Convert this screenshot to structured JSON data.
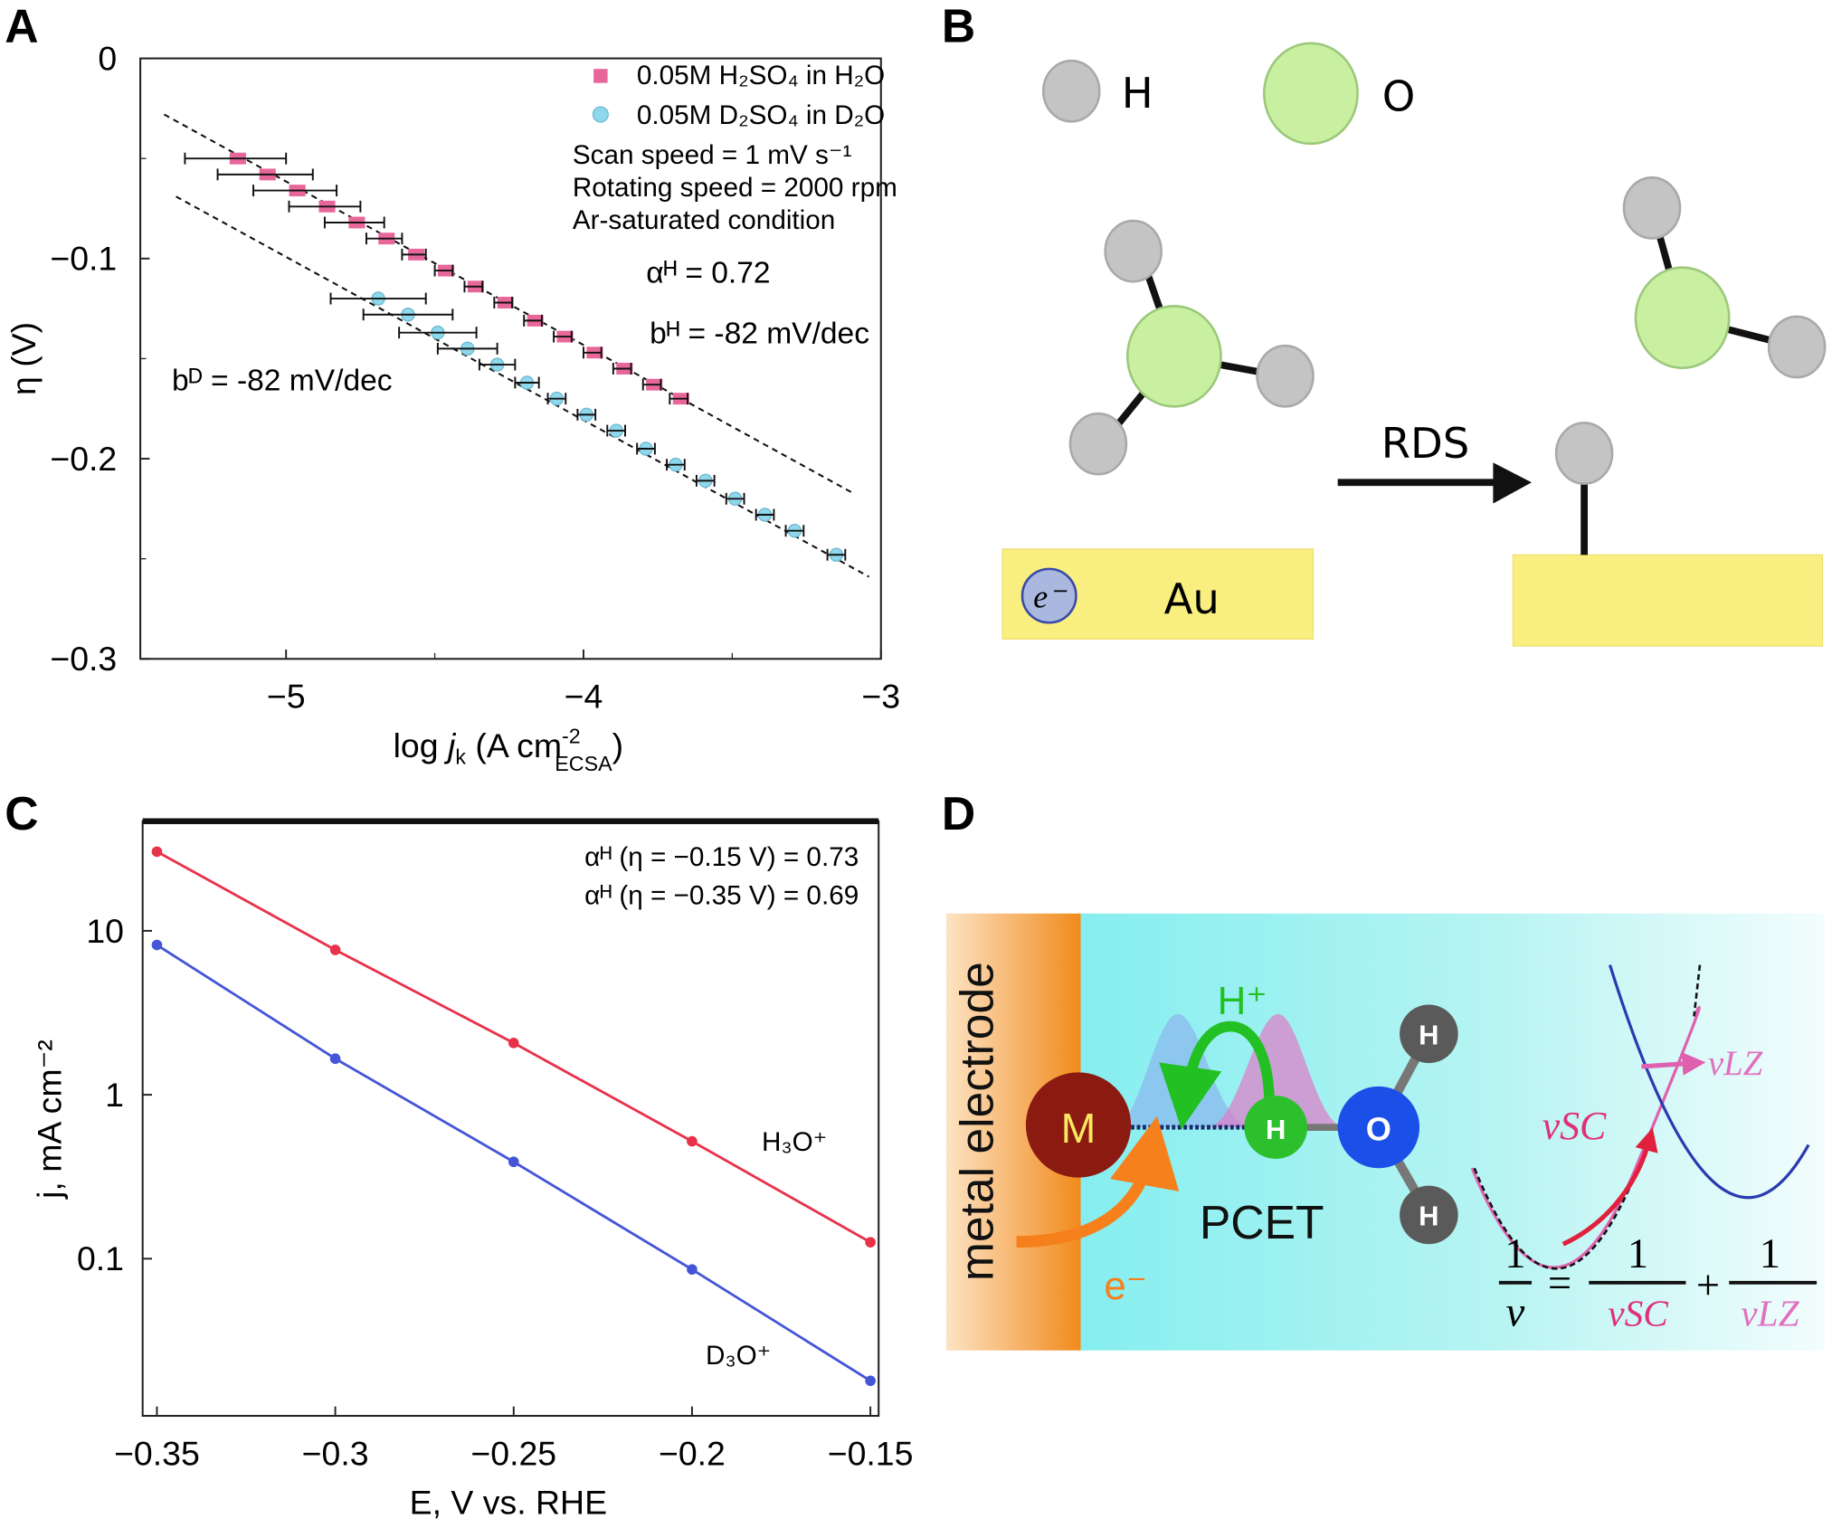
{
  "panels": {
    "a": "A",
    "b": "B",
    "c": "C",
    "d": "D"
  },
  "chart_data": [
    {
      "type": "scatter",
      "panel": "A",
      "xlabel": "log jₖ (A cm⁻²ECSA)",
      "xlabel_parts": {
        "pre": "log ",
        "j": "j",
        "k": "k",
        "mid": " (A cm",
        "sup": "-2",
        "sub": "ECSA",
        "post": ")"
      },
      "ylabel": "η (V)",
      "xlim": [
        -5.49,
        -3
      ],
      "ylim": [
        -0.3,
        0
      ],
      "xticks": [
        -5,
        -4,
        -3
      ],
      "xtick_labels": [
        "−5",
        "−4",
        "−3"
      ],
      "yticks": [
        0,
        -0.1,
        -0.2,
        -0.3
      ],
      "ytick_labels": [
        "0",
        "−0.1",
        "−0.2",
        "−0.3"
      ],
      "grid": false,
      "legend_position": "top-right",
      "series": [
        {
          "name": "0.05M H₂SO₄ in H₂O",
          "color": "#e8679a",
          "marker": "square",
          "x": [
            -5.17,
            -5.07,
            -4.97,
            -4.87,
            -4.77,
            -4.67,
            -4.57,
            -4.47,
            -4.37,
            -4.27,
            -4.17,
            -4.07,
            -3.97,
            -3.87,
            -3.77,
            -3.68
          ],
          "y": [
            -0.05,
            -0.058,
            -0.066,
            -0.074,
            -0.082,
            -0.09,
            -0.098,
            -0.106,
            -0.114,
            -0.122,
            -0.131,
            -0.139,
            -0.147,
            -0.155,
            -0.163,
            -0.17
          ],
          "xerr": [
            0.17,
            0.16,
            0.14,
            0.12,
            0.1,
            0.06,
            0.04,
            0.03,
            0.03,
            0.03,
            0.03,
            0.03,
            0.03,
            0.03,
            0.03,
            0.03
          ]
        },
        {
          "name": "0.05M D₂SO₄ in D₂O",
          "color": "#8fd8ec",
          "marker": "circle",
          "x": [
            -4.69,
            -4.59,
            -4.49,
            -4.39,
            -4.29,
            -4.19,
            -4.09,
            -3.99,
            -3.89,
            -3.79,
            -3.69,
            -3.59,
            -3.49,
            -3.39,
            -3.29,
            -3.15
          ],
          "y": [
            -0.12,
            -0.128,
            -0.137,
            -0.145,
            -0.153,
            -0.162,
            -0.17,
            -0.178,
            -0.186,
            -0.195,
            -0.203,
            -0.211,
            -0.22,
            -0.228,
            -0.236,
            -0.248
          ],
          "xerr": [
            0.16,
            0.15,
            0.13,
            0.1,
            0.06,
            0.04,
            0.03,
            0.03,
            0.03,
            0.03,
            0.03,
            0.03,
            0.03,
            0.03,
            0.03,
            0.03
          ]
        }
      ],
      "fit_lines": [
        {
          "x": [
            -5.41,
            -3.09
          ],
          "y": [
            -0.028,
            -0.2175
          ]
        },
        {
          "x": [
            -5.37,
            -3.04
          ],
          "y": [
            -0.069,
            -0.259
          ]
        }
      ],
      "annotations": {
        "scan": "Scan speed = 1 mV s⁻¹",
        "rotating": "Rotating speed = 2000 rpm",
        "condition": "Ar-saturated condition",
        "alpha_h": "αᴴ = 0.72",
        "b_h": "bᴴ = -82 mV/dec",
        "b_d": "bᴰ = -82 mV/dec"
      }
    },
    {
      "type": "line",
      "panel": "C",
      "xlabel": "E, V vs. RHE",
      "ylabel": "j, mA cm⁻²",
      "xlim": [
        -0.354,
        -0.1477
      ],
      "ylim": [
        0.011,
        46.6
      ],
      "yscale": "log",
      "xticks": [
        -0.35,
        -0.3,
        -0.25,
        -0.2,
        -0.15
      ],
      "xtick_labels": [
        "−0.35",
        "−0.3",
        "−0.25",
        "−0.2",
        "−0.15"
      ],
      "yticks": [
        10,
        1,
        0.1
      ],
      "ytick_labels": [
        "10",
        "1",
        "0.1"
      ],
      "grid": false,
      "categories": [
        -0.35,
        -0.3,
        -0.25,
        -0.2,
        -0.15
      ],
      "series": [
        {
          "name": "H₃O⁺",
          "color": "#e8324a",
          "values": [
            30.4,
            7.65,
            2.07,
            0.52,
            0.126
          ]
        },
        {
          "name": "D₃O⁺",
          "color": "#4455d8",
          "values": [
            8.2,
            1.66,
            0.39,
            0.086,
            0.018
          ]
        }
      ],
      "annotations": {
        "alpha1": "αᴴ (η = −0.15 V) = 0.73",
        "alpha2": "αᴴ (η = −0.35 V) = 0.69"
      }
    }
  ],
  "diagram_b": {
    "legend_h": "H",
    "legend_o": "O",
    "arrow_label": "RDS",
    "electron": "e⁻",
    "metal": "Au",
    "colors": {
      "h_atom": "#c4c4c4",
      "o_atom": "#c8f0a0",
      "gold": "#f8ef80"
    }
  },
  "diagram_d": {
    "electrode_label": "metal electrode",
    "metal": "M",
    "proton": "H⁺",
    "h_atom": "H",
    "o_atom": "O",
    "process": "PCET",
    "electron": "e⁻",
    "nu_sc": "νSC",
    "nu_lz": "νLZ",
    "eq_one": "1",
    "eq_nu": "ν",
    "eq_equals": "=",
    "eq_plus": "+",
    "eq_nu_sc": "νSC",
    "eq_nu_lz": "νLZ",
    "colors": {
      "electrode": "#f39a2c",
      "solution": "#8ff0f0",
      "metal_atom": "#8b1a10",
      "h_atom": "#2cc02c",
      "o_atom": "#1a4fe8"
    }
  }
}
